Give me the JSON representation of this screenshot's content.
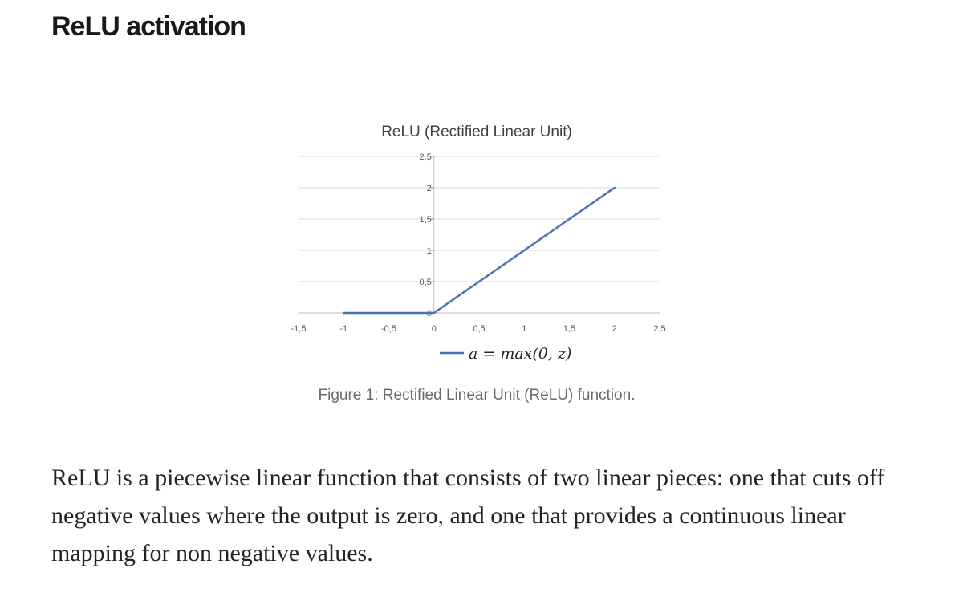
{
  "heading": "ReLU activation",
  "figure": {
    "caption": "Figure 1: Rectified Linear Unit (ReLU) function."
  },
  "paragraph": "ReLU is a piecewise linear function that consists of two linear pieces: one that cuts off negative values where the output is zero, and one that provides a continuous linear mapping for non negative values.",
  "chart_data": {
    "type": "line",
    "title": "ReLU (Rectified Linear Unit)",
    "xlabel": "",
    "ylabel": "",
    "xlim": [
      -1.5,
      2.5
    ],
    "ylim": [
      0,
      2.5
    ],
    "x_ticks": [
      "-1,5",
      "-1",
      "-0,5",
      "0",
      "0,5",
      "1",
      "1,5",
      "2",
      "2,5"
    ],
    "x_tick_values": [
      -1.5,
      -1,
      -0.5,
      0,
      0.5,
      1,
      1.5,
      2,
      2.5
    ],
    "y_ticks": [
      "0",
      "0,5",
      "1",
      "1,5",
      "2",
      "2,5"
    ],
    "y_tick_values": [
      0,
      0.5,
      1,
      1.5,
      2,
      2.5
    ],
    "grid": true,
    "legend_position": "bottom",
    "series": [
      {
        "name": "a = max(0, z)",
        "color": "#4a72b5",
        "x": [
          -1,
          0,
          2
        ],
        "y": [
          0,
          0,
          2
        ]
      }
    ]
  }
}
